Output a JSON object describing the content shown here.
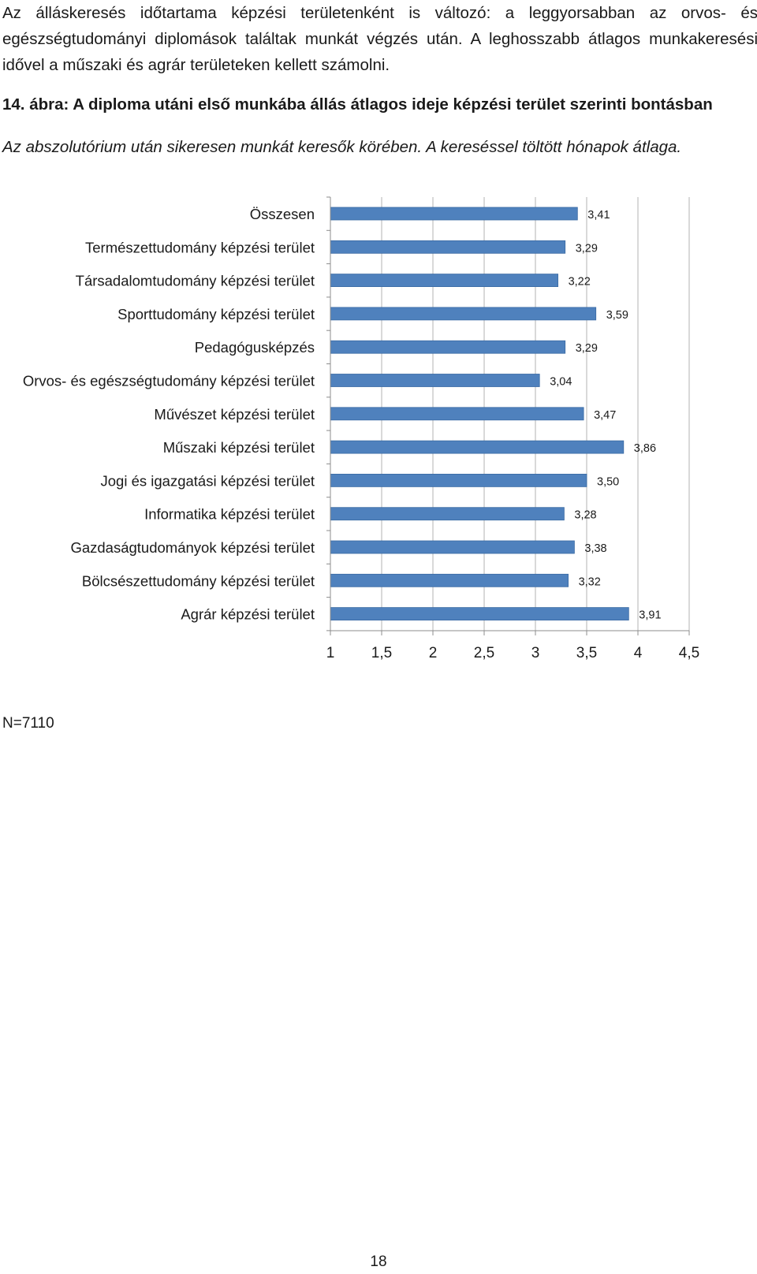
{
  "document": {
    "intro_text": "Az álláskeresés időtartama képzési területenként is változó: a leggyorsabban az orvos- és egészségtudományi diplomások találtak munkát végzés után. A leghosszabb átlagos munkakeresési idővel a műszaki és agrár területeken kellett számolni.",
    "figure_title": "14. ábra: A diploma utáni első munkába állás átlagos ideje képzési terület szerinti bontásban",
    "figure_subtitle": "Az abszolutórium után sikeresen munkát keresők körében. A kereséssel töltött hónapok átlaga.",
    "note": "N=7110",
    "page_number": "18"
  },
  "chart_data": {
    "type": "bar",
    "orientation": "horizontal",
    "categories": [
      "Összesen",
      "Természettudomány képzési terület",
      "Társadalomtudomány képzési terület",
      "Sporttudomány képzési terület",
      "Pedagógusképzés",
      "Orvos- és egészségtudomány képzési terület",
      "Művészet képzési terület",
      "Műszaki képzési terület",
      "Jogi és igazgatási képzési terület",
      "Informatika képzési terület",
      "Gazdaságtudományok képzési terület",
      "Bölcsészettudomány képzési terület",
      "Agrár képzési terület"
    ],
    "values": [
      3.41,
      3.29,
      3.22,
      3.59,
      3.29,
      3.04,
      3.47,
      3.86,
      3.5,
      3.28,
      3.38,
      3.32,
      3.91
    ],
    "value_labels": [
      "3,41",
      "3,29",
      "3,22",
      "3,59",
      "3,29",
      "3,04",
      "3,47",
      "3,86",
      "3,50",
      "3,28",
      "3,38",
      "3,32",
      "3,91"
    ],
    "xlim": [
      1,
      4.5
    ],
    "x_ticks": [
      1,
      1.5,
      2,
      2.5,
      3,
      3.5,
      4,
      4.5
    ],
    "x_tick_labels": [
      "1",
      "1,5",
      "2",
      "2,5",
      "3",
      "3,5",
      "4",
      "4,5"
    ],
    "grid": "vertical major gridlines",
    "legend": "none",
    "colors": {
      "bar": "#4f81bd",
      "bar_edge": "#3a6aa3",
      "grid": "#b3b3b3",
      "text": "#1a1a1a"
    }
  }
}
